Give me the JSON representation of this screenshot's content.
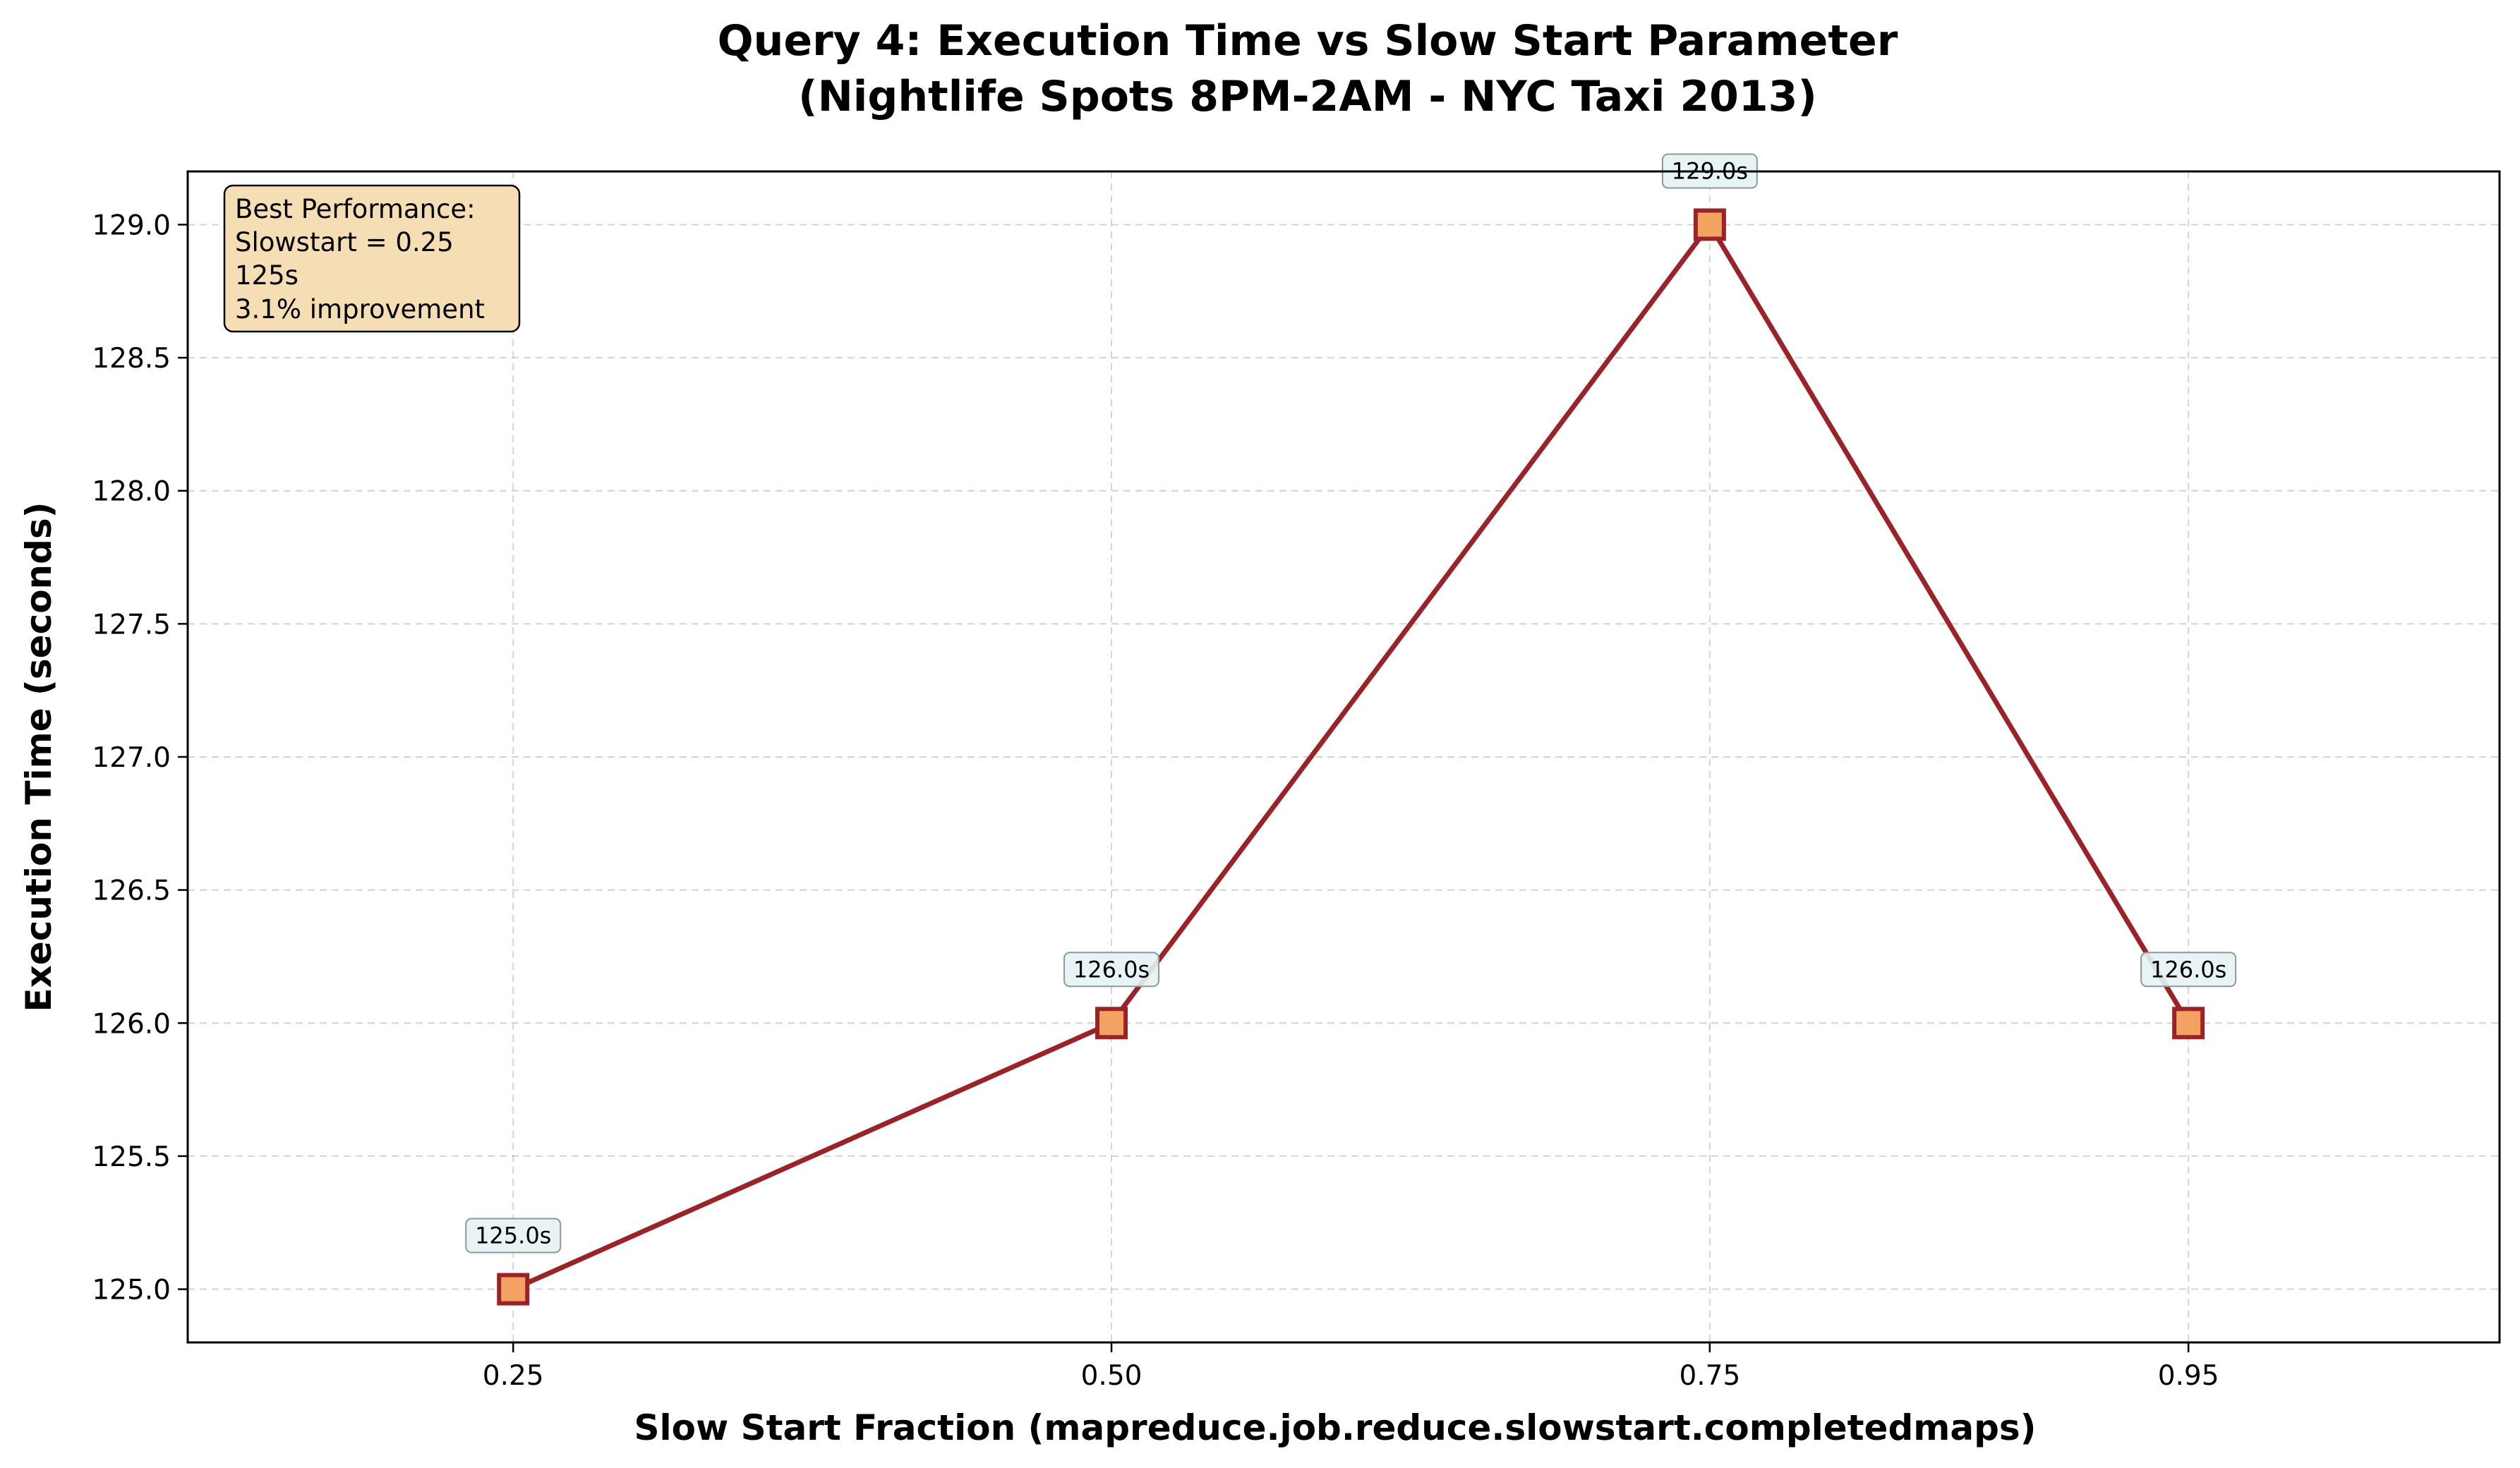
{
  "chart_data": {
    "type": "line",
    "title": "Query 4: Execution Time vs Slow Start Parameter",
    "subtitle": "(Nightlife Spots 8PM-2AM - NYC Taxi 2013)",
    "xlabel": "Slow Start Fraction (mapreduce.job.reduce.slowstart.completedmaps)",
    "ylabel": "Execution Time (seconds)",
    "x": [
      0.25,
      0.5,
      0.75,
      0.95
    ],
    "x_tick_labels": [
      "0.25",
      "0.50",
      "0.75",
      "0.95"
    ],
    "xlim": [
      0.114,
      1.08
    ],
    "ylim": [
      124.8,
      129.2
    ],
    "y_ticks": [
      125.0,
      125.5,
      126.0,
      126.5,
      127.0,
      127.5,
      128.0,
      128.5,
      129.0
    ],
    "y_tick_labels": [
      "125.0",
      "125.5",
      "126.0",
      "126.5",
      "127.0",
      "127.5",
      "128.0",
      "128.5",
      "129.0"
    ],
    "series": [
      {
        "values": [
          125.0,
          126.0,
          129.0,
          126.0
        ],
        "data_labels": [
          "125.0s",
          "126.0s",
          "129.0s",
          "126.0s"
        ],
        "line_color": "#9b2226",
        "marker": "square",
        "marker_fill": "#f4a261",
        "marker_edge": "#9b2226"
      }
    ],
    "grid": true,
    "annotation_box": {
      "lines": [
        "Best Performance:",
        "Slowstart = 0.25",
        "125s",
        "3.1% improvement"
      ],
      "fill": "#f5deb3",
      "placement": "top-left"
    }
  }
}
